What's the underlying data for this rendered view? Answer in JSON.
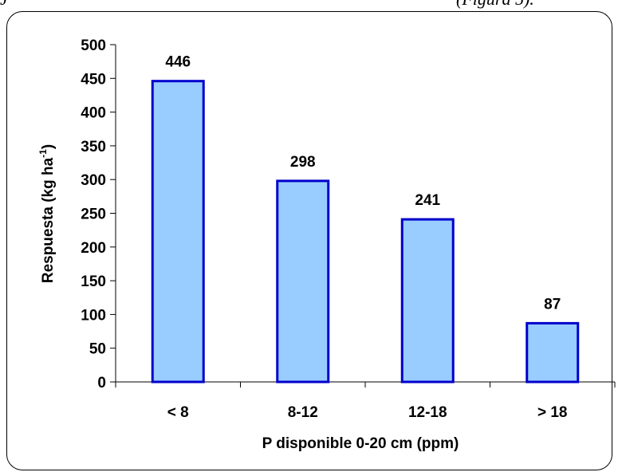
{
  "caption_fragment": {
    "left": "J",
    "right": "(Figura 5)."
  },
  "chart_data": {
    "type": "bar",
    "title": "",
    "xlabel": "P disponible 0-20 cm (ppm)",
    "ylabel": "Respuesta (kg ha",
    "ylabel_superscript": "-1",
    "ylabel_suffix": ")",
    "categories": [
      "< 8",
      "8-12",
      "12-18",
      "> 18"
    ],
    "values": [
      446,
      298,
      241,
      87
    ],
    "data_labels": [
      "446",
      "298",
      "241",
      "87"
    ],
    "ylim": [
      0,
      500
    ],
    "yticks": [
      0,
      50,
      100,
      150,
      200,
      250,
      300,
      350,
      400,
      450,
      500
    ],
    "grid": false,
    "legend": "none",
    "colors": {
      "bar_fill": "#99ccff",
      "bar_stroke": "#0000cc",
      "axis": "#000000"
    }
  }
}
